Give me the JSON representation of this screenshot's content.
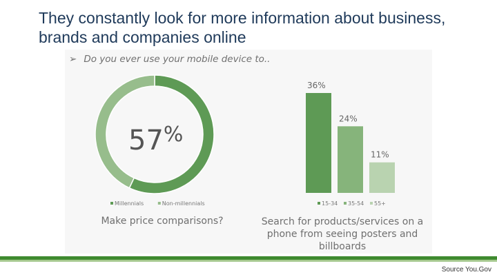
{
  "slide": {
    "title": "They constantly look for more information about business, brands and companies online",
    "question_bullet": "➢",
    "question": "Do you ever use your mobile device to..",
    "source": "Source You.Gov"
  },
  "colors": {
    "dark_green": "#5e9a55",
    "mid_green": "#86b47b",
    "light_green": "#b9d3b0",
    "donut_light": "#97bd8c",
    "rule_dark": "#3f8a2f",
    "rule_light": "#a6c98f"
  },
  "chart_data": [
    {
      "type": "pie",
      "style": "donut",
      "center_label": "57%",
      "categories": [
        "Millennials",
        "Non-millennials"
      ],
      "values": [
        57,
        43
      ],
      "legend": [
        "Millennials",
        "Non-millennials"
      ],
      "legend_position": "bottom",
      "caption": "Make price comparisons?"
    },
    {
      "type": "bar",
      "categories": [
        "15-34",
        "35-54",
        "55+"
      ],
      "values": [
        36,
        24,
        11
      ],
      "data_labels": [
        "36%",
        "24%",
        "11%"
      ],
      "legend": [
        "15-34",
        "35-54",
        "55+"
      ],
      "legend_position": "bottom",
      "ylim": [
        0,
        40
      ],
      "grid": false,
      "caption": "Search for products/services on a phone from seeing posters and billboards"
    }
  ]
}
